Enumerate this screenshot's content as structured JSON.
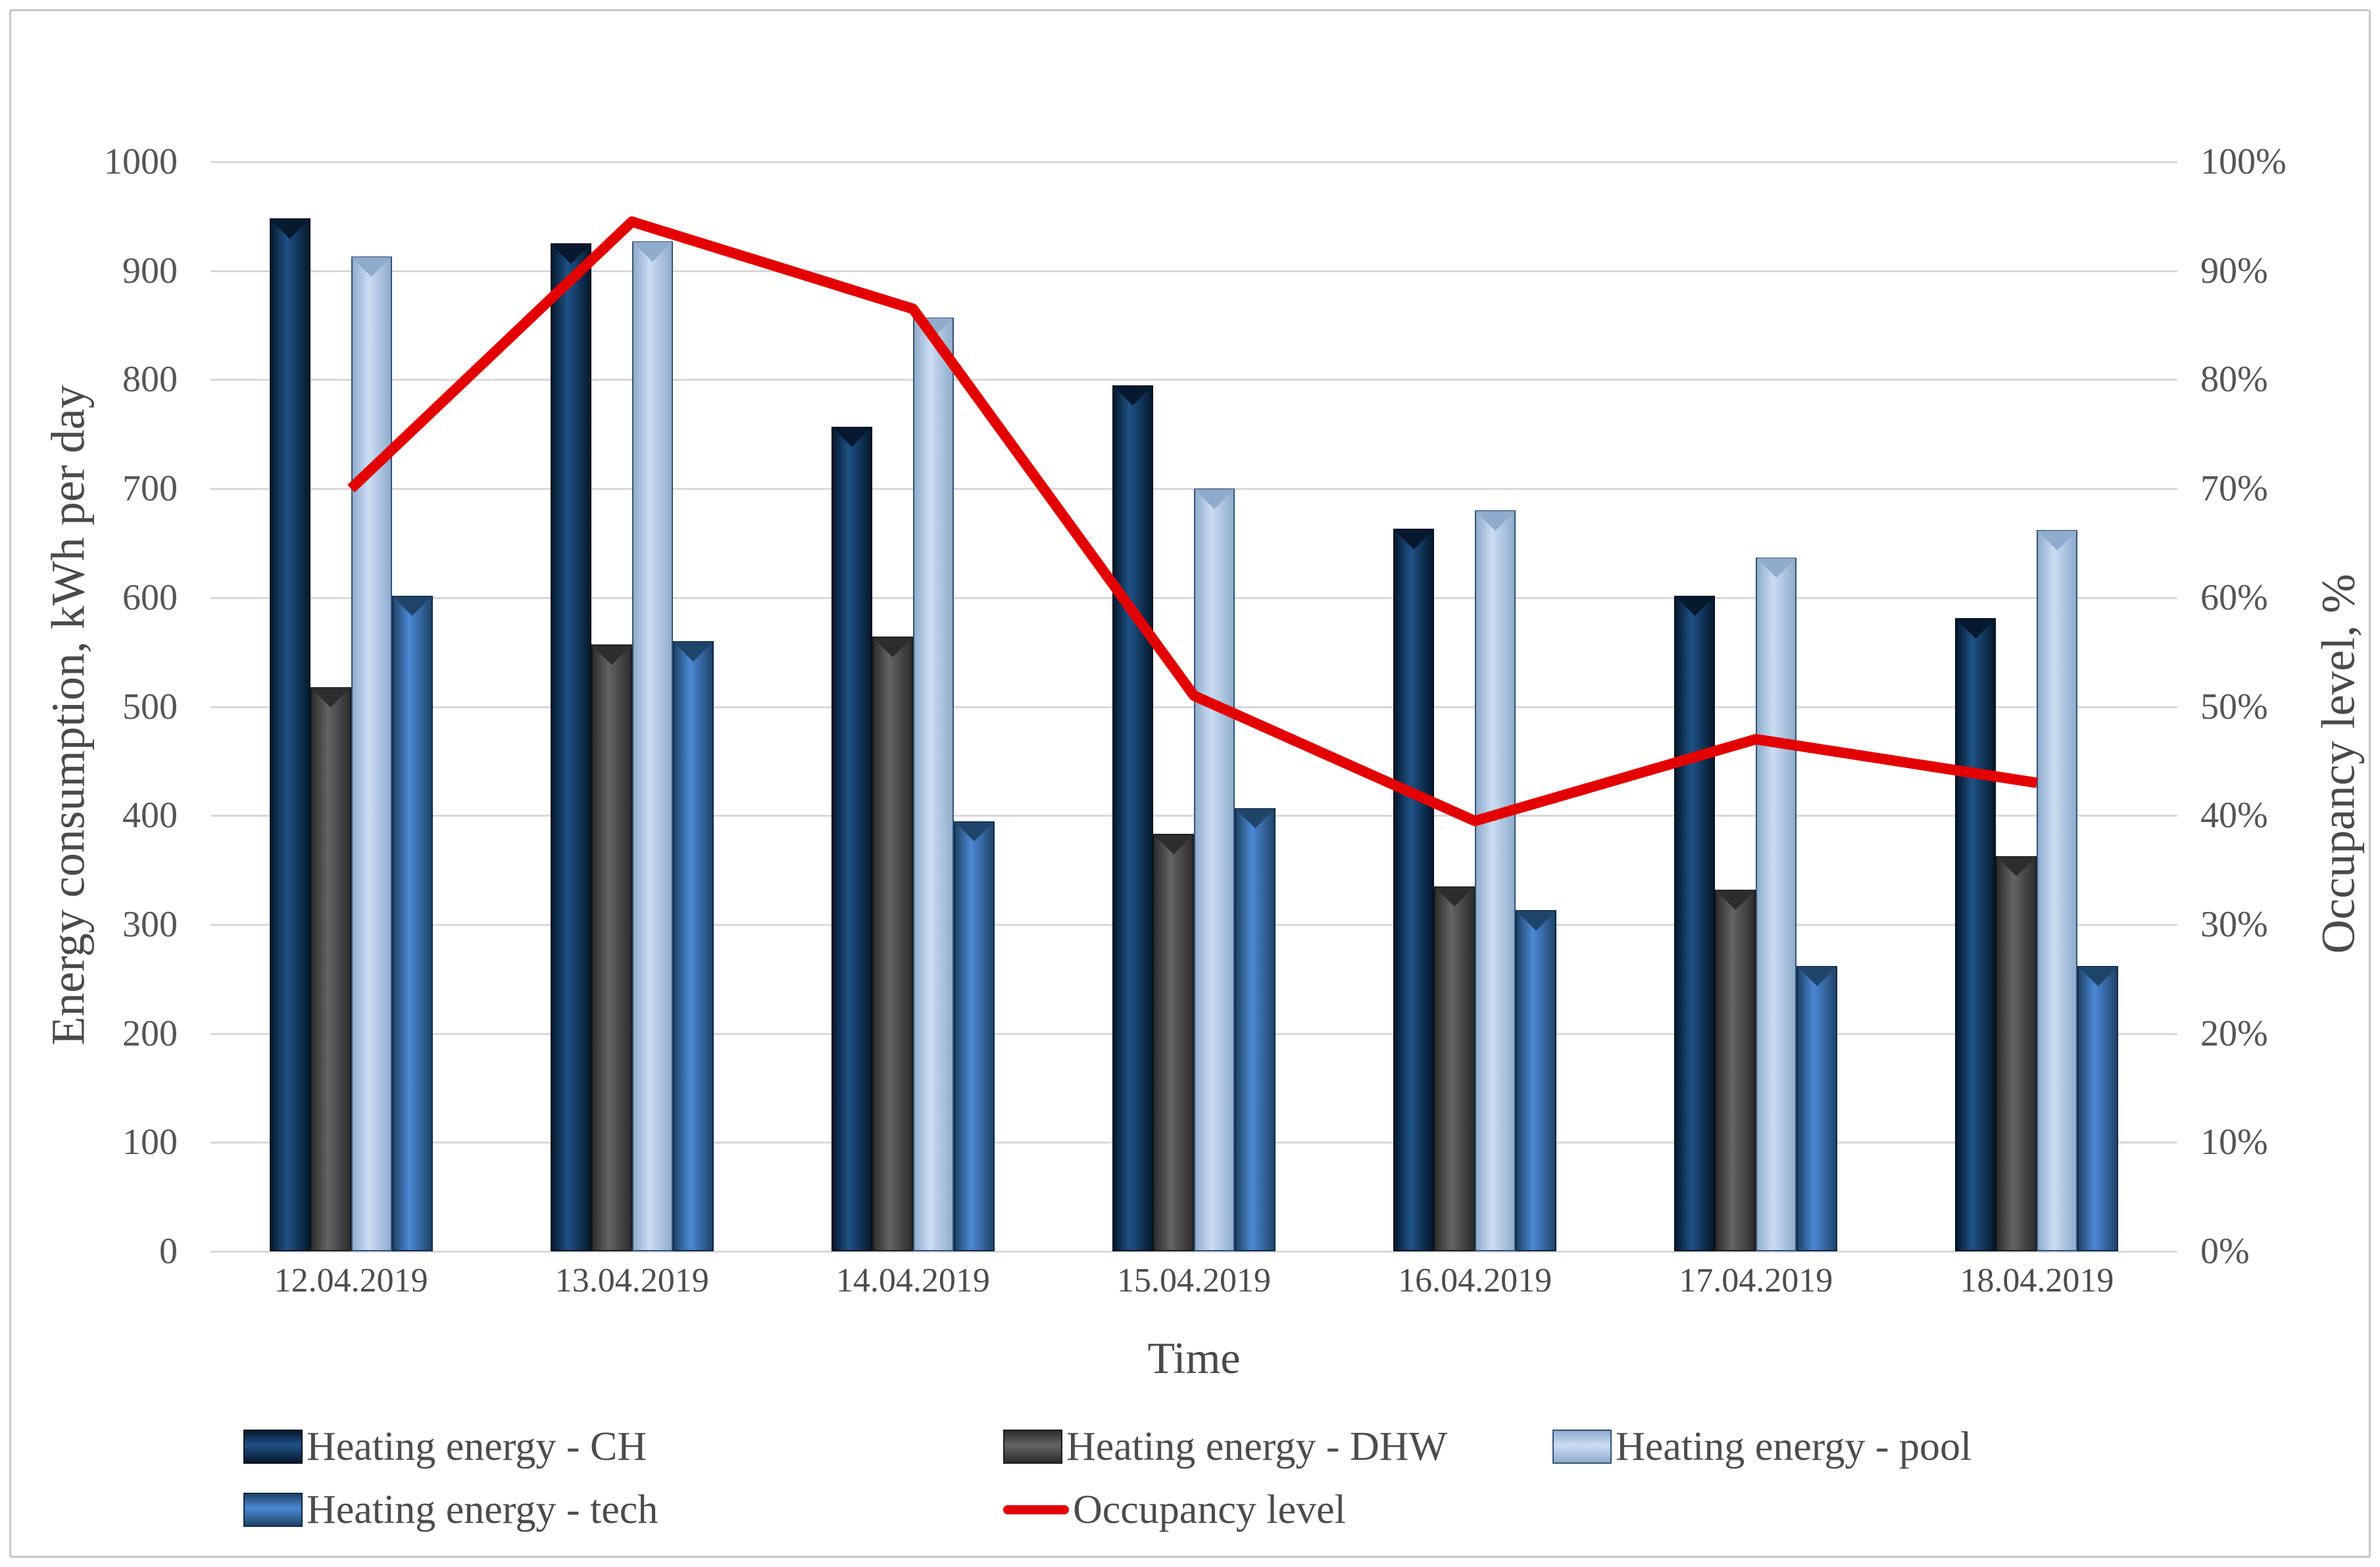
{
  "figure": {
    "background": "#FFFFFF",
    "border_color": "#C6C6C6",
    "text_color": "#4C4C4C",
    "gridline_color": "#D8D8D8"
  },
  "axes": {
    "left": {
      "title": "Energy consumption, kWh per day",
      "ticks": [
        "1000",
        "900",
        "800",
        "700",
        "600",
        "500",
        "400",
        "300",
        "200",
        "100",
        "0"
      ]
    },
    "right": {
      "title": "Occupancy level, %",
      "ticks": [
        "100%",
        "90%",
        "80%",
        "70%",
        "60%",
        "50%",
        "40%",
        "30%",
        "20%",
        "10%",
        "0%"
      ]
    },
    "x": {
      "title": "Time"
    }
  },
  "chart_data": {
    "type": "bar",
    "subtype": "grouped-bars-with-secondary-axis-line",
    "title": "",
    "xlabel": "Time",
    "ylabel_left": "Energy consumption, kWh per day",
    "ylabel_right": "Occupancy level, %",
    "left_axis": {
      "min": 0,
      "max": 1000,
      "grid": true
    },
    "right_axis": {
      "min": 0,
      "max": 100
    },
    "legend_position": "bottom",
    "categories": [
      "12.04.2019",
      "13.04.2019",
      "14.04.2019",
      "15.04.2019",
      "16.04.2019",
      "17.04.2019",
      "18.04.2019"
    ],
    "series": [
      {
        "name": "Heating energy - CH",
        "type": "bar",
        "axis": "left",
        "values": [
          948,
          925,
          757,
          795,
          663,
          602,
          581
        ],
        "color_mid": "#1E5287",
        "color_edge": "#06192E",
        "outline": "#04101F"
      },
      {
        "name": "Heating energy - DHW",
        "type": "bar",
        "axis": "left",
        "values": [
          518,
          557,
          564,
          383,
          335,
          332,
          363
        ],
        "color_mid": "#646464",
        "color_edge": "#2D2D2D",
        "outline": "#1C1C1C"
      },
      {
        "name": "Heating energy - pool",
        "type": "bar",
        "axis": "left",
        "values": [
          913,
          927,
          857,
          700,
          680,
          637,
          662
        ],
        "color_mid": "#CBDDF2",
        "color_edge": "#8FACCC",
        "outline": "#33517A"
      },
      {
        "name": "Heating energy - tech",
        "type": "bar",
        "axis": "left",
        "values": [
          602,
          560,
          395,
          407,
          313,
          262,
          262
        ],
        "color_mid": "#4C89D6",
        "color_edge": "#1F4469",
        "outline": "#11294A"
      }
    ],
    "line_series": {
      "name": "Occupancy level",
      "type": "line",
      "axis": "right",
      "color": "#E30000",
      "stroke_width": 16,
      "values": [
        70,
        94.5,
        86.5,
        51,
        39.5,
        47,
        43
      ]
    }
  },
  "legend": {
    "rows": [
      [
        {
          "label": "Heating energy - CH",
          "swatch": "bar",
          "series_index": 0
        },
        {
          "label": "Heating energy - DHW",
          "swatch": "bar",
          "series_index": 1
        },
        {
          "label": "Heating energy - pool",
          "swatch": "bar",
          "series_index": 2
        }
      ],
      [
        {
          "label": "Heating energy - tech",
          "swatch": "bar",
          "series_index": 3
        },
        {
          "label": "Occupancy level",
          "swatch": "line",
          "series_index": 4
        }
      ]
    ]
  }
}
